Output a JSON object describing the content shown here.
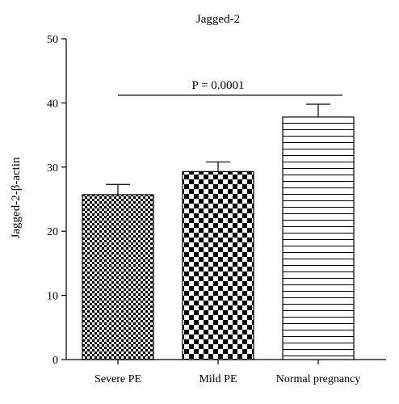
{
  "chart_data": {
    "type": "bar",
    "title": "Jagged-2",
    "xlabel": "",
    "ylabel": "Jagged-2-β-actin",
    "categories": [
      "Severe PE",
      "Mild PE",
      "Normal pregnancy"
    ],
    "values": [
      25.7,
      29.3,
      37.8
    ],
    "error": [
      1.6,
      1.5,
      2.0
    ],
    "patterns": [
      "small-checker",
      "large-checker",
      "horizontal-lines"
    ],
    "ylim": [
      0,
      50
    ],
    "yticks": [
      0,
      10,
      20,
      30,
      40,
      50
    ],
    "grid": false,
    "legend": "none",
    "annotation": {
      "text": "P = 0.0001",
      "line_y": 41.2,
      "from_category": 0,
      "to_category": 2
    },
    "colors": {
      "bar_fill": "#000000",
      "bar_background": "#ffffff",
      "axis": "#000000"
    }
  }
}
